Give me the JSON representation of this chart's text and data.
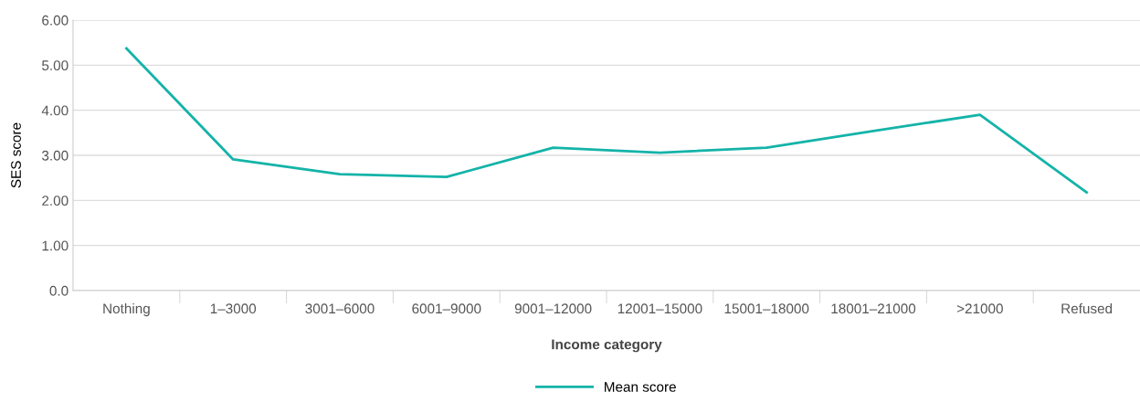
{
  "chart_data": {
    "type": "line",
    "xlabel": "Income category",
    "ylabel": "SES score",
    "categories": [
      "Nothing",
      "1–3000",
      "3001–6000",
      "6001–9000",
      "9001–12000",
      "12001–15000",
      "15001–18000",
      "18001–21000",
      ">21000",
      "Refused"
    ],
    "series": [
      {
        "name": "Mean score",
        "color": "#14b3a8",
        "values": [
          5.37,
          2.91,
          2.58,
          2.52,
          3.17,
          3.06,
          3.17,
          3.54,
          3.9,
          2.18
        ]
      }
    ],
    "ylim": [
      0,
      6
    ],
    "yticks": [
      {
        "value": 0,
        "label": "0.0"
      },
      {
        "value": 1,
        "label": "1.00"
      },
      {
        "value": 2,
        "label": "2.00"
      },
      {
        "value": 3,
        "label": "3.00"
      },
      {
        "value": 4,
        "label": "4.00"
      },
      {
        "value": 5,
        "label": "5.00"
      },
      {
        "value": 6,
        "label": "6.00"
      }
    ],
    "grid": "y",
    "legend": "bottom",
    "marker": "none"
  }
}
